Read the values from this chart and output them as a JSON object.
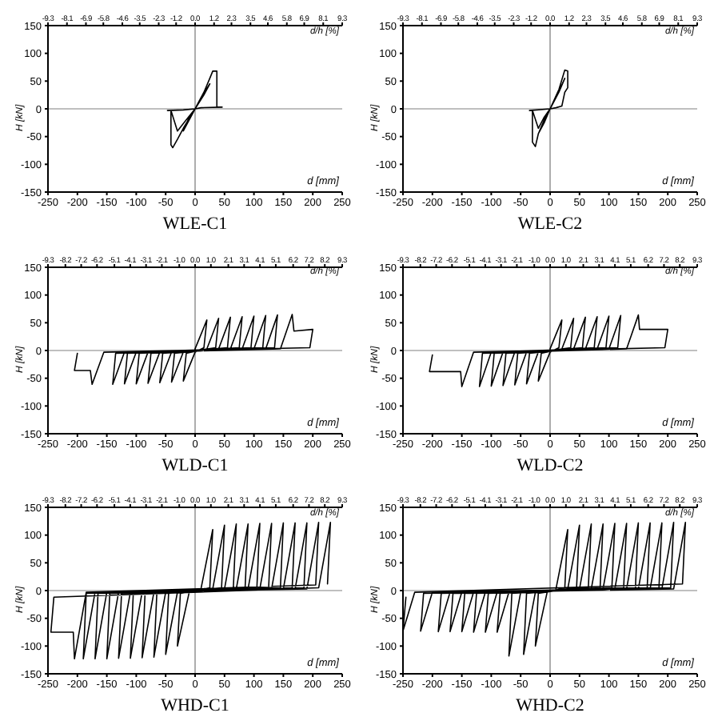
{
  "chart_data": [
    {
      "type": "line",
      "title": "WLE-C1",
      "xlabel": "d [mm]",
      "ylabel": "H [kN]",
      "x2label": "d/h [%]",
      "xlim": [
        -250,
        250
      ],
      "xticks": [
        -250,
        -200,
        -150,
        -100,
        -50,
        0,
        50,
        100,
        150,
        200,
        250
      ],
      "ylim": [
        -150,
        150
      ],
      "yticks": [
        -150,
        -100,
        -50,
        0,
        50,
        100,
        150
      ],
      "x2lim": [
        -9.3,
        9.3
      ],
      "x2ticks": [
        -9.3,
        -8.1,
        -6.9,
        -5.8,
        -4.6,
        -3.5,
        -2.3,
        -1.2,
        {
          "value": 0,
          "label": "0.0"
        },
        1.2,
        2.3,
        3.5,
        4.6,
        5.8,
        6.9,
        8.1,
        9.3
      ],
      "marker": "none",
      "line_style": "solid",
      "ref_lines": [
        {
          "axis": "x",
          "value": 0,
          "color": "#999999"
        },
        {
          "axis": "y",
          "value": 0,
          "color": "#aaaaaa"
        }
      ],
      "series": [
        {
          "color": "#000000",
          "x": [
            0,
            -10,
            -20,
            -10,
            0,
            15,
            25,
            10,
            0,
            -20,
            -30,
            -38,
            -41,
            -41,
            -30,
            -15,
            0,
            15,
            25,
            30,
            37,
            37,
            46,
            10,
            0,
            -20,
            -47
          ],
          "values": [
            0,
            -20,
            -40,
            -15,
            0,
            25,
            45,
            20,
            0,
            -35,
            -55,
            -70,
            -65,
            -3,
            -40,
            -20,
            0,
            30,
            55,
            68,
            68,
            3,
            3,
            2,
            0,
            -2,
            -3
          ]
        }
      ]
    },
    {
      "type": "line",
      "title": "WLE-C2",
      "xlabel": "d [mm]",
      "ylabel": "H [kN]",
      "x2label": "d/h [%]",
      "xlim": [
        -250,
        250
      ],
      "xticks": [
        -250,
        -200,
        -150,
        -100,
        -50,
        0,
        50,
        100,
        150,
        200,
        250
      ],
      "ylim": [
        -150,
        150
      ],
      "yticks": [
        -150,
        -100,
        -50,
        0,
        50,
        100,
        150
      ],
      "x2lim": [
        -9.3,
        9.3
      ],
      "x2ticks": [
        -9.3,
        -8.1,
        -6.9,
        -5.8,
        -4.6,
        -3.5,
        -2.3,
        -1.2,
        {
          "value": 0,
          "label": "0.0"
        },
        1.2,
        2.3,
        3.5,
        4.6,
        5.8,
        6.9,
        8.1,
        9.3
      ],
      "marker": "none",
      "line_style": "solid",
      "ref_lines": [
        {
          "axis": "x",
          "value": 0,
          "color": "#999999"
        },
        {
          "axis": "y",
          "value": 0,
          "color": "#aaaaaa"
        }
      ],
      "series": [
        {
          "color": "#000000",
          "x": [
            0,
            -10,
            -20,
            -10,
            0,
            15,
            25,
            10,
            0,
            -20,
            -25,
            -30,
            -30,
            -20,
            -10,
            0,
            15,
            25,
            30,
            30,
            25,
            20,
            10,
            0,
            -35
          ],
          "values": [
            0,
            -25,
            -45,
            -20,
            0,
            30,
            55,
            20,
            0,
            -45,
            -68,
            -60,
            -3,
            -35,
            -15,
            0,
            35,
            70,
            68,
            38,
            30,
            5,
            2,
            0,
            -3
          ]
        }
      ]
    },
    {
      "type": "line",
      "title": "WLD-C1",
      "xlabel": "d [mm]",
      "ylabel": "H [kN]",
      "x2label": "d/h [%]",
      "xlim": [
        -250,
        250
      ],
      "xticks": [
        -250,
        -200,
        -150,
        -100,
        -50,
        0,
        50,
        100,
        150,
        200,
        250
      ],
      "ylim": [
        -150,
        150
      ],
      "yticks": [
        -150,
        -100,
        -50,
        0,
        50,
        100,
        150
      ],
      "x2lim": [
        -9.3,
        9.3
      ],
      "x2ticks": [
        -9.3,
        -8.2,
        -7.2,
        -6.2,
        -5.1,
        -4.1,
        -3.1,
        -2.1,
        {
          "value": -1,
          "label": "-1.0"
        },
        {
          "value": 0,
          "label": "0.0"
        },
        {
          "value": 1,
          "label": "1.0"
        },
        2.1,
        3.1,
        4.1,
        5.1,
        6.2,
        7.2,
        8.2,
        9.3
      ],
      "marker": "none",
      "line_style": "solid",
      "ref_lines": [
        {
          "axis": "x",
          "value": 0,
          "color": "#999999"
        },
        {
          "axis": "y",
          "value": 0,
          "color": "#aaaaaa"
        }
      ],
      "series": [
        {
          "color": "#000000",
          "x": [
            0,
            20,
            15,
            0,
            -20,
            -15,
            20,
            40,
            35,
            -20,
            -40,
            -35,
            40,
            60,
            55,
            -40,
            -60,
            -55,
            60,
            80,
            75,
            -60,
            -80,
            -75,
            80,
            100,
            95,
            -80,
            -100,
            -95,
            100,
            120,
            115,
            -100,
            -120,
            -115,
            120,
            140,
            135,
            -120,
            -140,
            -135,
            145,
            165,
            168,
            200,
            195,
            -155,
            -175,
            -178,
            -205,
            -200
          ],
          "values": [
            3,
            55,
            5,
            -3,
            -55,
            -5,
            3,
            58,
            5,
            -3,
            -57,
            -5,
            3,
            60,
            5,
            -3,
            -58,
            -5,
            3,
            61,
            5,
            -3,
            -59,
            -5,
            3,
            62,
            5,
            -3,
            -60,
            -5,
            3,
            63,
            5,
            -3,
            -60,
            -5,
            3,
            64,
            5,
            -3,
            -61,
            -5,
            3,
            65,
            35,
            38,
            5,
            -3,
            -61,
            -36,
            -36,
            -5
          ]
        }
      ]
    },
    {
      "type": "line",
      "title": "WLD-C2",
      "xlabel": "d [mm]",
      "ylabel": "H [kN]",
      "x2label": "d/h [%]",
      "xlim": [
        -250,
        250
      ],
      "xticks": [
        -250,
        -200,
        -150,
        -100,
        -50,
        0,
        50,
        100,
        150,
        200,
        250
      ],
      "ylim": [
        -150,
        150
      ],
      "yticks": [
        -150,
        -100,
        -50,
        0,
        50,
        100,
        150
      ],
      "x2lim": [
        -9.3,
        9.3
      ],
      "x2ticks": [
        -9.3,
        -8.2,
        -7.2,
        -6.2,
        -5.1,
        -4.1,
        -3.1,
        -2.1,
        {
          "value": -1,
          "label": "-1.0"
        },
        {
          "value": 0,
          "label": "0.0"
        },
        {
          "value": 1,
          "label": "1.0"
        },
        2.1,
        3.1,
        4.1,
        5.1,
        6.2,
        7.2,
        8.2,
        9.3
      ],
      "marker": "none",
      "line_style": "solid",
      "ref_lines": [
        {
          "axis": "x",
          "value": 0,
          "color": "#999999"
        },
        {
          "axis": "y",
          "value": 0,
          "color": "#aaaaaa"
        }
      ],
      "series": [
        {
          "color": "#000000",
          "x": [
            0,
            20,
            15,
            0,
            -20,
            -15,
            20,
            40,
            35,
            -20,
            -40,
            -35,
            40,
            60,
            55,
            -40,
            -60,
            -55,
            60,
            80,
            75,
            -60,
            -80,
            -75,
            80,
            100,
            95,
            -80,
            -100,
            -95,
            100,
            120,
            115,
            -100,
            -120,
            -115,
            130,
            150,
            152,
            200,
            195,
            -130,
            -150,
            -152,
            -205,
            -200
          ],
          "values": [
            3,
            55,
            5,
            -3,
            -55,
            -5,
            3,
            58,
            5,
            -3,
            -60,
            -5,
            3,
            60,
            5,
            -3,
            -62,
            -5,
            3,
            61,
            5,
            -3,
            -63,
            -5,
            3,
            62,
            5,
            -3,
            -64,
            -5,
            3,
            63,
            5,
            -3,
            -65,
            -5,
            3,
            64,
            38,
            38,
            5,
            -3,
            -65,
            -38,
            -38,
            -8
          ]
        }
      ]
    },
    {
      "type": "line",
      "title": "WHD-C1",
      "xlabel": "d [mm]",
      "ylabel": "H [kN]",
      "x2label": "d/h [%]",
      "xlim": [
        -250,
        250
      ],
      "xticks": [
        -250,
        -200,
        -150,
        -100,
        -50,
        0,
        50,
        100,
        150,
        200,
        250
      ],
      "ylim": [
        -150,
        150
      ],
      "yticks": [
        -150,
        -100,
        -50,
        0,
        50,
        100,
        150
      ],
      "x2lim": [
        -9.3,
        9.3
      ],
      "x2ticks": [
        -9.3,
        -8.2,
        -7.2,
        -6.2,
        -5.1,
        -4.1,
        -3.1,
        -2.1,
        {
          "value": -1,
          "label": "-1.0"
        },
        {
          "value": 0,
          "label": "0.0"
        },
        {
          "value": 1,
          "label": "1.0"
        },
        2.1,
        3.1,
        4.1,
        5.1,
        6.2,
        7.2,
        8.2,
        9.3
      ],
      "marker": "none",
      "line_style": "solid",
      "ref_lines": [
        {
          "axis": "x",
          "value": 0,
          "color": "#999999"
        },
        {
          "axis": "y",
          "value": 0,
          "color": "#aaaaaa"
        }
      ],
      "series": [
        {
          "color": "#000000",
          "x": [
            10,
            30,
            25,
            -10,
            -30,
            -25,
            30,
            50,
            45,
            -30,
            -50,
            -45,
            50,
            70,
            65,
            -50,
            -70,
            -65,
            70,
            90,
            85,
            -70,
            -90,
            -85,
            90,
            110,
            105,
            -90,
            -110,
            -105,
            110,
            130,
            125,
            -110,
            -130,
            -125,
            130,
            150,
            145,
            -130,
            -150,
            -145,
            150,
            170,
            165,
            -150,
            -170,
            -165,
            170,
            190,
            185,
            -170,
            -190,
            -185,
            190,
            210,
            205,
            -185,
            -205,
            -207,
            -245,
            -240,
            210,
            230,
            225
          ],
          "values": [
            3,
            110,
            5,
            -3,
            -100,
            -5,
            3,
            118,
            5,
            -3,
            -115,
            -5,
            3,
            120,
            5,
            -3,
            -120,
            -5,
            3,
            120,
            5,
            -3,
            -121,
            -5,
            3,
            121,
            5,
            -3,
            -122,
            -5,
            3,
            121,
            5,
            -3,
            -122,
            -5,
            3,
            122,
            5,
            -3,
            -123,
            -5,
            3,
            122,
            5,
            -3,
            -123,
            -5,
            3,
            122,
            5,
            -3,
            -123,
            -5,
            3,
            123,
            10,
            -3,
            -123,
            -75,
            -75,
            -12,
            5,
            123,
            12
          ]
        }
      ]
    },
    {
      "type": "line",
      "title": "WHD-C2",
      "xlabel": "d [mm]",
      "ylabel": "H [kN]",
      "x2label": "d/h [%]",
      "xlim": [
        -250,
        250
      ],
      "xticks": [
        -250,
        -200,
        -150,
        -100,
        -50,
        0,
        50,
        100,
        150,
        200,
        250
      ],
      "ylim": [
        -150,
        150
      ],
      "yticks": [
        -150,
        -100,
        -50,
        0,
        50,
        100,
        150
      ],
      "x2lim": [
        -9.3,
        9.3
      ],
      "x2ticks": [
        -9.3,
        -8.2,
        -7.2,
        -6.2,
        -5.1,
        -4.1,
        -3.1,
        -2.1,
        {
          "value": -1,
          "label": "-1.0"
        },
        {
          "value": 0,
          "label": "0.0"
        },
        {
          "value": 1,
          "label": "1.0"
        },
        2.1,
        3.1,
        4.1,
        5.1,
        6.2,
        7.2,
        8.2,
        9.3
      ],
      "marker": "none",
      "line_style": "solid",
      "ref_lines": [
        {
          "axis": "x",
          "value": 0,
          "color": "#999999"
        },
        {
          "axis": "y",
          "value": 0,
          "color": "#aaaaaa"
        }
      ],
      "series": [
        {
          "color": "#000000",
          "x": [
            10,
            30,
            25,
            -5,
            -25,
            -20,
            30,
            50,
            45,
            -25,
            -45,
            -40,
            50,
            70,
            65,
            -50,
            -70,
            -65,
            70,
            90,
            85,
            -70,
            -90,
            -85,
            90,
            110,
            105,
            -90,
            -110,
            -105,
            110,
            130,
            125,
            -110,
            -130,
            -125,
            130,
            150,
            145,
            -130,
            -150,
            -145,
            150,
            170,
            165,
            -150,
            -170,
            -165,
            170,
            190,
            185,
            -170,
            -190,
            -185,
            190,
            210,
            205,
            -200,
            -220,
            -215,
            210,
            230,
            225,
            -230,
            -250,
            -245
          ],
          "values": [
            3,
            110,
            5,
            -3,
            -100,
            -5,
            3,
            118,
            5,
            -3,
            -115,
            -5,
            3,
            120,
            5,
            -3,
            -118,
            -5,
            3,
            120,
            5,
            -3,
            -75,
            -5,
            3,
            121,
            5,
            -3,
            -75,
            -5,
            3,
            121,
            5,
            -3,
            -75,
            -5,
            3,
            122,
            5,
            -3,
            -74,
            -5,
            3,
            122,
            5,
            -3,
            -74,
            -5,
            3,
            122,
            5,
            -3,
            -74,
            -5,
            3,
            123,
            5,
            -3,
            -73,
            -5,
            3,
            123,
            12,
            -3,
            -73,
            -12
          ]
        }
      ]
    }
  ]
}
